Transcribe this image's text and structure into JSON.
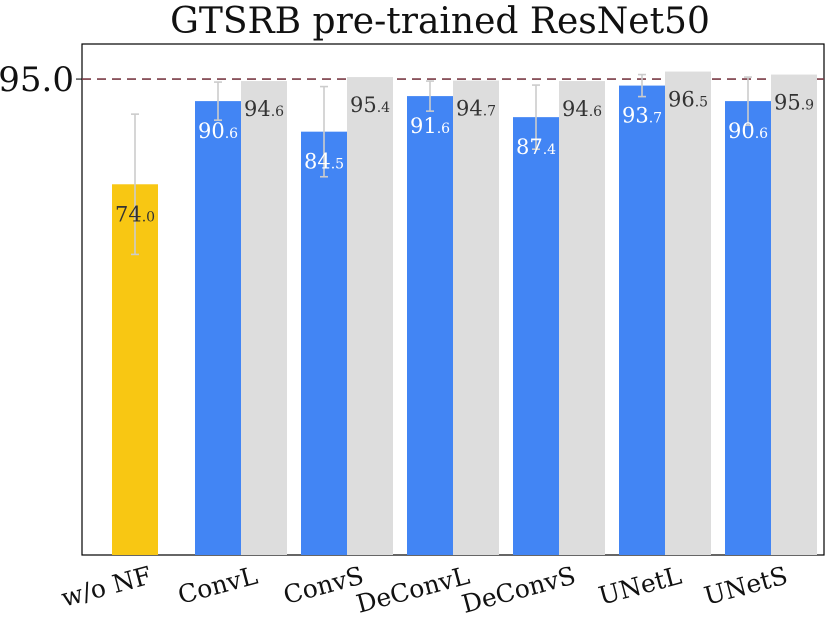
{
  "chart_data": {
    "type": "bar",
    "title": "GTSRB pre-trained ResNet50",
    "xlabel": "",
    "ylabel": "",
    "ylim": [
      0,
      102
    ],
    "categories": [
      "w/o NF",
      "ConvL",
      "ConvS",
      "DeConvL",
      "DeConvS",
      "UNetL",
      "UNetS"
    ],
    "yticks": [
      95.0
    ],
    "ytick_labels": [
      "95.0"
    ],
    "reference_line": {
      "y": 95.0,
      "style": "dashed",
      "color": "#7a3b46"
    },
    "grid": false,
    "series": [
      {
        "values": [
          74.0,
          90.6,
          84.5,
          91.6,
          87.4,
          93.7,
          90.6
        ],
        "error": [
          14.0,
          3.8,
          9.0,
          3.0,
          6.4,
          2.2,
          4.8
        ],
        "labels": [
          {
            "main": "74",
            "dec": ".0"
          },
          {
            "main": "90",
            "dec": ".6"
          },
          {
            "main": "84",
            "dec": ".5"
          },
          {
            "main": "91",
            "dec": ".6"
          },
          {
            "main": "87",
            "dec": ".4"
          },
          {
            "main": "93",
            "dec": ".7"
          },
          {
            "main": "90",
            "dec": ".6"
          }
        ],
        "colors": [
          "#f8c713",
          "#4285f4",
          "#4285f4",
          "#4285f4",
          "#4285f4",
          "#4285f4",
          "#4285f4"
        ]
      },
      {
        "values": [
          null,
          94.6,
          95.4,
          94.7,
          94.6,
          96.5,
          95.9
        ],
        "labels": [
          null,
          {
            "main": "94",
            "dec": ".6"
          },
          {
            "main": "95",
            "dec": ".4"
          },
          {
            "main": "94",
            "dec": ".7"
          },
          {
            "main": "94",
            "dec": ".6"
          },
          {
            "main": "96",
            "dec": ".5"
          },
          {
            "main": "95",
            "dec": ".9"
          }
        ],
        "color": "#dddddd"
      }
    ],
    "colors": {
      "baseline": "#f8c713",
      "flow": "#4285f4",
      "reference_bar": "#dddddd",
      "error_bar": "#cccccc",
      "dashed_line": "#7a3b46"
    }
  }
}
